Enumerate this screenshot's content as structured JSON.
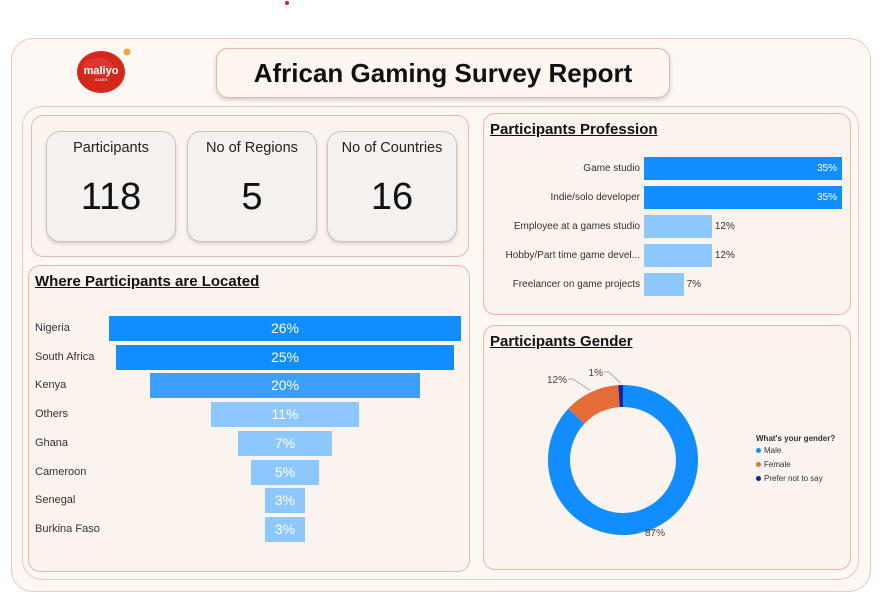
{
  "logo": {
    "text": "maliyo",
    "subtext": "GAMES"
  },
  "header": {
    "title": "African Gaming Survey Report"
  },
  "kpis": [
    {
      "label": "Participants",
      "value": "118"
    },
    {
      "label": "No of Regions",
      "value": "5"
    },
    {
      "label": "No of Countries",
      "value": "16"
    }
  ],
  "location": {
    "title": "Where Participants are Located"
  },
  "profession": {
    "title": "Participants Profession"
  },
  "gender": {
    "title": "Participants Gender"
  },
  "colors": {
    "dark": "#118dff",
    "mid": "#3a9fff",
    "light": "#8dc7ff",
    "orange": "#e66c37",
    "navy": "#12239e"
  },
  "chart_data": [
    {
      "type": "bar",
      "title": "Where Participants are Located",
      "categories": [
        "Nigeria",
        "South Africa",
        "Kenya",
        "Others",
        "Ghana",
        "Cameroon",
        "Senegal",
        "Burkina Faso"
      ],
      "values": [
        26,
        25,
        20,
        11,
        7,
        5,
        3,
        3
      ],
      "labels": [
        "26%",
        "25%",
        "20%",
        "11%",
        "7%",
        "5%",
        "3%",
        "3%"
      ],
      "unit": "%"
    },
    {
      "type": "bar",
      "title": "Participants Profession",
      "categories": [
        "Game studio",
        "Indie/solo developer",
        "Employee at a games studio",
        "Hobby/Part time game devel...",
        "Freelancer on game projects"
      ],
      "values": [
        35,
        35,
        12,
        12,
        7
      ],
      "labels": [
        "35%",
        "35%",
        "12%",
        "12%",
        "7%"
      ],
      "unit": "%"
    },
    {
      "type": "pie",
      "title": "Participants Gender",
      "legend_title": "What's your gender?",
      "categories": [
        "Male",
        "Female",
        "Prefer not to say"
      ],
      "values": [
        87,
        12,
        1
      ],
      "labels": [
        "87%",
        "12%",
        "1%"
      ],
      "legend_position": "right"
    }
  ]
}
